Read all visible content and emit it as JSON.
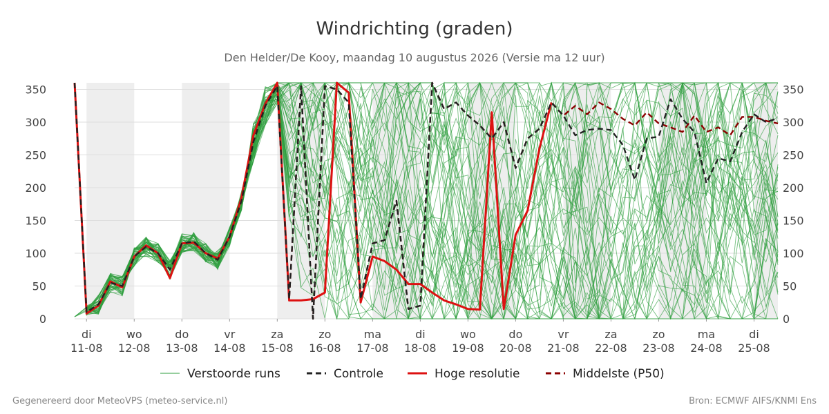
{
  "chart_data": {
    "type": "line",
    "title": "Windrichting (graden)",
    "subtitle": "Den Helder/De Kooy, maandag 10 augustus 2026 (Versie ma 12 uur)",
    "xlabel": "",
    "ylabel": "",
    "ylim": [
      0,
      360
    ],
    "yticks": [
      0,
      50,
      100,
      150,
      200,
      250,
      300,
      350
    ],
    "xlim": [
      10.75,
      25.5
    ],
    "grid": true,
    "legend_position": "bottom",
    "x_ticks": [
      {
        "x": 11,
        "day": "di",
        "date": "11-08"
      },
      {
        "x": 12,
        "day": "wo",
        "date": "12-08"
      },
      {
        "x": 13,
        "day": "do",
        "date": "13-08"
      },
      {
        "x": 14,
        "day": "vr",
        "date": "14-08"
      },
      {
        "x": 15,
        "day": "za",
        "date": "15-08"
      },
      {
        "x": 16,
        "day": "zo",
        "date": "16-08"
      },
      {
        "x": 17,
        "day": "ma",
        "date": "17-08"
      },
      {
        "x": 18,
        "day": "di",
        "date": "18-08"
      },
      {
        "x": 19,
        "day": "wo",
        "date": "19-08"
      },
      {
        "x": 20,
        "day": "do",
        "date": "20-08"
      },
      {
        "x": 21,
        "day": "vr",
        "date": "21-08"
      },
      {
        "x": 22,
        "day": "za",
        "date": "22-08"
      },
      {
        "x": 23,
        "day": "zo",
        "date": "23-08"
      },
      {
        "x": 24,
        "day": "ma",
        "date": "24-08"
      },
      {
        "x": 25,
        "day": "di",
        "date": "25-08"
      }
    ],
    "shaded_days": [
      [
        11,
        12
      ],
      [
        13,
        14
      ],
      [
        15,
        16
      ],
      [
        17,
        18
      ],
      [
        19,
        20
      ],
      [
        21,
        22
      ],
      [
        23,
        24
      ],
      [
        25,
        25.5
      ]
    ],
    "series": [
      {
        "name": "Controle",
        "color": "#222222",
        "style": "dashed",
        "points": [
          [
            10.75,
            360
          ],
          [
            11,
            10
          ],
          [
            11.25,
            22
          ],
          [
            11.5,
            55
          ],
          [
            11.75,
            50
          ],
          [
            12,
            95
          ],
          [
            12.25,
            110
          ],
          [
            12.5,
            100
          ],
          [
            12.75,
            75
          ],
          [
            13,
            115
          ],
          [
            13.25,
            118
          ],
          [
            13.5,
            100
          ],
          [
            13.75,
            90
          ],
          [
            14,
            125
          ],
          [
            14.25,
            180
          ],
          [
            14.5,
            270
          ],
          [
            14.75,
            325
          ],
          [
            15,
            355
          ],
          [
            15.25,
            30
          ],
          [
            15.5,
            355
          ],
          [
            15.75,
            0
          ],
          [
            16,
            355
          ],
          [
            16.25,
            350
          ],
          [
            16.5,
            330
          ],
          [
            16.75,
            30
          ],
          [
            17,
            115
          ],
          [
            17.25,
            120
          ],
          [
            17.5,
            180
          ],
          [
            17.75,
            15
          ],
          [
            18,
            20
          ],
          [
            18.25,
            360
          ],
          [
            18.5,
            320
          ],
          [
            18.75,
            330
          ],
          [
            19,
            310
          ],
          [
            19.25,
            295
          ],
          [
            19.5,
            275
          ],
          [
            19.75,
            300
          ],
          [
            20,
            230
          ],
          [
            20.25,
            275
          ],
          [
            20.5,
            290
          ],
          [
            20.75,
            330
          ],
          [
            21,
            310
          ],
          [
            21.25,
            280
          ],
          [
            21.5,
            288
          ],
          [
            21.75,
            290
          ],
          [
            22,
            288
          ],
          [
            22.25,
            265
          ],
          [
            22.5,
            212
          ],
          [
            22.75,
            275
          ],
          [
            23,
            278
          ],
          [
            23.25,
            335
          ],
          [
            23.5,
            305
          ],
          [
            23.75,
            285
          ],
          [
            24,
            207
          ],
          [
            24.25,
            245
          ],
          [
            24.5,
            240
          ],
          [
            24.75,
            285
          ],
          [
            25,
            312
          ],
          [
            25.25,
            300
          ],
          [
            25.5,
            306
          ]
        ]
      },
      {
        "name": "Hoge resolutie",
        "color": "#dd1111",
        "style": "solid",
        "points": [
          [
            10.75,
            360
          ],
          [
            11,
            8
          ],
          [
            11.25,
            20
          ],
          [
            11.5,
            57
          ],
          [
            11.75,
            48
          ],
          [
            12,
            95
          ],
          [
            12.25,
            112
          ],
          [
            12.5,
            100
          ],
          [
            12.75,
            62
          ],
          [
            13,
            115
          ],
          [
            13.25,
            116
          ],
          [
            13.5,
            100
          ],
          [
            13.75,
            92
          ],
          [
            14,
            125
          ],
          [
            14.25,
            185
          ],
          [
            14.5,
            280
          ],
          [
            14.75,
            328
          ],
          [
            15,
            360
          ],
          [
            15.25,
            28
          ],
          [
            15.5,
            28
          ],
          [
            15.75,
            30
          ],
          [
            16,
            40
          ],
          [
            16.25,
            360
          ],
          [
            16.5,
            345
          ],
          [
            16.75,
            25
          ],
          [
            17,
            95
          ],
          [
            17.25,
            88
          ],
          [
            17.5,
            75
          ],
          [
            17.75,
            53
          ],
          [
            18,
            53
          ],
          [
            18.25,
            40
          ],
          [
            18.5,
            28
          ],
          [
            18.75,
            22
          ],
          [
            19,
            15
          ],
          [
            19.25,
            14
          ],
          [
            19.5,
            315
          ],
          [
            19.75,
            15
          ],
          [
            20,
            128
          ],
          [
            20.25,
            165
          ],
          [
            20.5,
            260
          ],
          [
            20.75,
            330
          ]
        ]
      },
      {
        "name": "Middelste (P50)",
        "color": "#8b0000",
        "style": "dashed",
        "points": [
          [
            10.75,
            360
          ],
          [
            11,
            10
          ],
          [
            11.25,
            22
          ],
          [
            11.5,
            55
          ],
          [
            11.75,
            50
          ],
          [
            12,
            95
          ],
          [
            12.25,
            110
          ],
          [
            12.5,
            100
          ],
          [
            12.75,
            75
          ],
          [
            13,
            115
          ],
          [
            13.25,
            118
          ],
          [
            13.5,
            100
          ],
          [
            13.75,
            90
          ],
          [
            14,
            125
          ],
          [
            14.25,
            180
          ],
          [
            14.5,
            270
          ],
          [
            14.75,
            325
          ],
          [
            15,
            355
          ],
          [
            15.25,
            30
          ],
          [
            15.5,
            355
          ],
          [
            15.75,
            0
          ],
          [
            16,
            355
          ],
          [
            16.25,
            350
          ],
          [
            16.5,
            330
          ],
          [
            16.75,
            30
          ],
          [
            17,
            115
          ],
          [
            17.25,
            120
          ],
          [
            17.5,
            180
          ],
          [
            17.75,
            15
          ],
          [
            18,
            20
          ],
          [
            18.25,
            360
          ],
          [
            18.5,
            320
          ],
          [
            18.75,
            330
          ],
          [
            19,
            310
          ],
          [
            19.25,
            295
          ],
          [
            19.5,
            275
          ],
          [
            19.75,
            300
          ],
          [
            20,
            230
          ],
          [
            20.25,
            275
          ],
          [
            20.5,
            290
          ],
          [
            20.75,
            330
          ],
          [
            21,
            310
          ],
          [
            21.25,
            325
          ],
          [
            21.5,
            312
          ],
          [
            21.75,
            330
          ],
          [
            22,
            320
          ],
          [
            22.25,
            305
          ],
          [
            22.5,
            295
          ],
          [
            22.75,
            315
          ],
          [
            23,
            298
          ],
          [
            23.25,
            292
          ],
          [
            23.5,
            285
          ],
          [
            23.75,
            310
          ],
          [
            24,
            285
          ],
          [
            24.25,
            292
          ],
          [
            24.5,
            280
          ],
          [
            24.75,
            308
          ],
          [
            25,
            308
          ],
          [
            25.25,
            302
          ],
          [
            25.5,
            298
          ]
        ]
      }
    ],
    "ensemble": {
      "name": "Verstoorde runs",
      "color": "#2e9e3e",
      "count": 50,
      "x_start": 10.75,
      "x_end": 25.5,
      "x_step": 0.25,
      "note_shape": "narrow spread 0-14.5, wide spread afterwards"
    }
  },
  "legend": [
    {
      "label": "Verstoorde runs",
      "color": "#2e9e3e",
      "style": "thin"
    },
    {
      "label": "Controle",
      "color": "#222222",
      "style": "dashed"
    },
    {
      "label": "Hoge resolutie",
      "color": "#dd1111",
      "style": "solid"
    },
    {
      "label": "Middelste (P50)",
      "color": "#8b0000",
      "style": "dashed"
    }
  ],
  "footer": {
    "left": "Gegenereerd door MeteoVPS (meteo-service.nl)",
    "right": "Bron: ECMWF AIFS/KNMI Ens"
  }
}
